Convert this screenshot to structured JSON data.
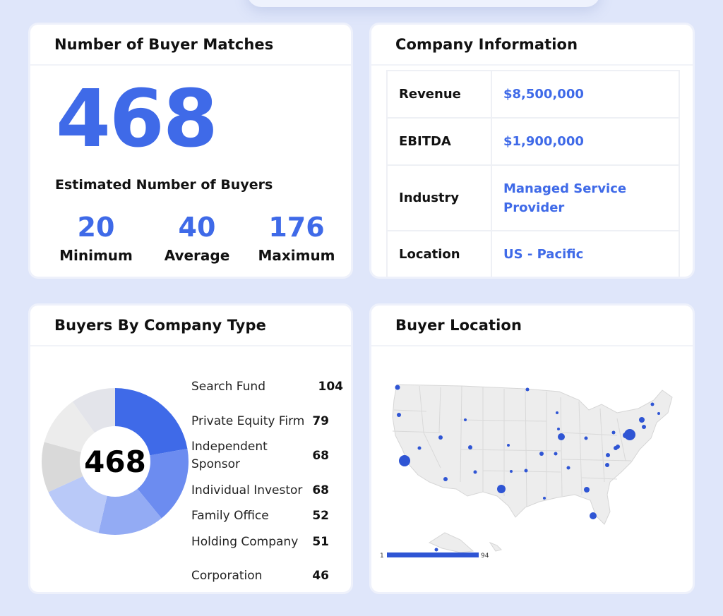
{
  "matches": {
    "title": "Number of Buyer Matches",
    "total": "468",
    "subtitle": "Estimated Number of Buyers",
    "stats": [
      {
        "value": "20",
        "label": "Minimum"
      },
      {
        "value": "40",
        "label": "Average"
      },
      {
        "value": "176",
        "label": "Maximum"
      }
    ]
  },
  "company": {
    "title": "Company Information",
    "rows": [
      {
        "key": "Revenue",
        "value": "$8,500,000"
      },
      {
        "key": "EBITDA",
        "value": "$1,900,000"
      },
      {
        "key": "Industry",
        "value": "Managed Service Provider"
      },
      {
        "key": "Location",
        "value": "US - Pacific"
      }
    ]
  },
  "types": {
    "title": "Buyers By Company Type",
    "center": "468",
    "items": [
      {
        "label": "Search Fund",
        "value": "104"
      },
      {
        "label": "Private Equity Firm",
        "value": "79"
      },
      {
        "label": "Independent Sponsor",
        "value": "68"
      },
      {
        "label": "Individual Investor",
        "value": "68"
      },
      {
        "label": "Family Office",
        "value": "52"
      },
      {
        "label": "Holding Company",
        "value": "51"
      },
      {
        "label": "Corporation",
        "value": "46"
      }
    ],
    "colors": [
      "#3f6ae8",
      "#6c8cf0",
      "#93abf4",
      "#b9c9f8",
      "#d9d9d9",
      "#ececec",
      "#e3e4ea"
    ]
  },
  "location": {
    "title": "Buyer Location",
    "legend_min": "1",
    "legend_max": "94",
    "dot_color": "#2f55d4"
  }
}
